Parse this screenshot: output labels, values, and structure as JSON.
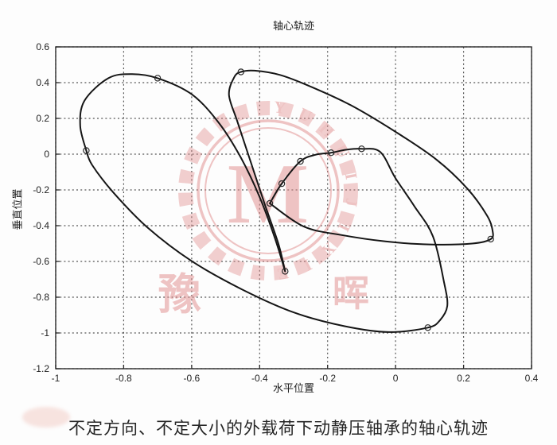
{
  "figure": {
    "title": "轴心轨迹",
    "xlabel": "水平位置",
    "ylabel": "垂直位置",
    "caption": "不定方向、不定大小的外载荷下动静压轴承的轴心轨迹"
  },
  "watermark": {
    "letters": [
      "Y",
      "U",
      "H",
      "U",
      "I",
      "J",
      "I",
      "X",
      "I",
      "E"
    ],
    "center_char": "M",
    "left_char": "豫",
    "right_char": "晖",
    "color": "#e08a8a"
  },
  "chart_data": {
    "type": "line",
    "title": "轴心轨迹",
    "xlabel": "水平位置",
    "ylabel": "垂直位置",
    "xlim": [
      -1,
      0.4
    ],
    "ylim": [
      -1.2,
      0.6
    ],
    "xticks": [
      -1,
      -0.8,
      -0.6,
      -0.4,
      -0.2,
      0,
      0.2,
      0.4
    ],
    "yticks": [
      0.6,
      0.4,
      0.2,
      0,
      -0.2,
      -0.4,
      -0.6,
      -0.8,
      -1,
      -1.2
    ],
    "grid": true,
    "line_color": "#151515",
    "series": [
      {
        "name": "shaft-center-orbit",
        "segments": [
          [
            [
              -0.91,
              0.02
            ],
            [
              -0.928,
              0.16
            ],
            [
              -0.915,
              0.3
            ],
            [
              -0.845,
              0.425
            ],
            [
              -0.775,
              0.448
            ],
            [
              -0.7,
              0.425
            ],
            [
              -0.6,
              0.335
            ],
            [
              -0.52,
              0.175
            ],
            [
              -0.455,
              -0.02
            ],
            [
              -0.4,
              -0.24
            ],
            [
              -0.355,
              -0.47
            ],
            [
              -0.325,
              -0.655
            ]
          ],
          [
            [
              -0.325,
              -0.655
            ],
            [
              -0.345,
              -0.5
            ],
            [
              -0.385,
              -0.28
            ],
            [
              -0.425,
              -0.05
            ],
            [
              -0.465,
              0.18
            ],
            [
              -0.49,
              0.33
            ],
            [
              -0.475,
              0.43
            ],
            [
              -0.455,
              0.46
            ],
            [
              -0.415,
              0.467
            ],
            [
              -0.34,
              0.443
            ],
            [
              -0.25,
              0.378
            ],
            [
              -0.13,
              0.272
            ],
            [
              0.0,
              0.125
            ],
            [
              0.12,
              -0.03
            ],
            [
              0.21,
              -0.19
            ],
            [
              0.268,
              -0.34
            ],
            [
              0.285,
              -0.425
            ],
            [
              0.28,
              -0.475
            ],
            [
              0.225,
              -0.5
            ],
            [
              0.1,
              -0.505
            ],
            [
              -0.03,
              -0.488
            ],
            [
              -0.16,
              -0.452
            ],
            [
              -0.27,
              -0.405
            ],
            [
              -0.37,
              -0.275
            ]
          ],
          [
            [
              -0.37,
              -0.275
            ],
            [
              -0.335,
              -0.165
            ],
            [
              -0.28,
              -0.04
            ],
            [
              -0.235,
              -0.003
            ],
            [
              -0.19,
              0.008
            ],
            [
              -0.145,
              0.025
            ],
            [
              -0.1,
              0.03
            ],
            [
              -0.045,
              0.012
            ],
            [
              0.0,
              -0.135
            ],
            [
              0.055,
              -0.29
            ],
            [
              0.11,
              -0.46
            ],
            [
              0.143,
              -0.72
            ],
            [
              0.152,
              -0.85
            ],
            [
              0.13,
              -0.93
            ],
            [
              0.095,
              -0.97
            ],
            [
              -0.02,
              -0.995
            ],
            [
              -0.15,
              -0.962
            ],
            [
              -0.3,
              -0.885
            ],
            [
              -0.45,
              -0.758
            ],
            [
              -0.6,
              -0.598
            ],
            [
              -0.73,
              -0.41
            ],
            [
              -0.83,
              -0.215
            ],
            [
              -0.893,
              -0.06
            ],
            [
              -0.91,
              0.02
            ]
          ]
        ]
      }
    ],
    "markers": [
      [
        -0.91,
        0.02
      ],
      [
        -0.7,
        0.425
      ],
      [
        -0.455,
        0.46
      ],
      [
        0.28,
        -0.475
      ],
      [
        -0.325,
        -0.655
      ],
      [
        -0.37,
        -0.275
      ],
      [
        -0.335,
        -0.165
      ],
      [
        -0.28,
        -0.04
      ],
      [
        -0.19,
        0.008
      ],
      [
        -0.1,
        0.03
      ],
      [
        0.095,
        -0.97
      ]
    ]
  }
}
